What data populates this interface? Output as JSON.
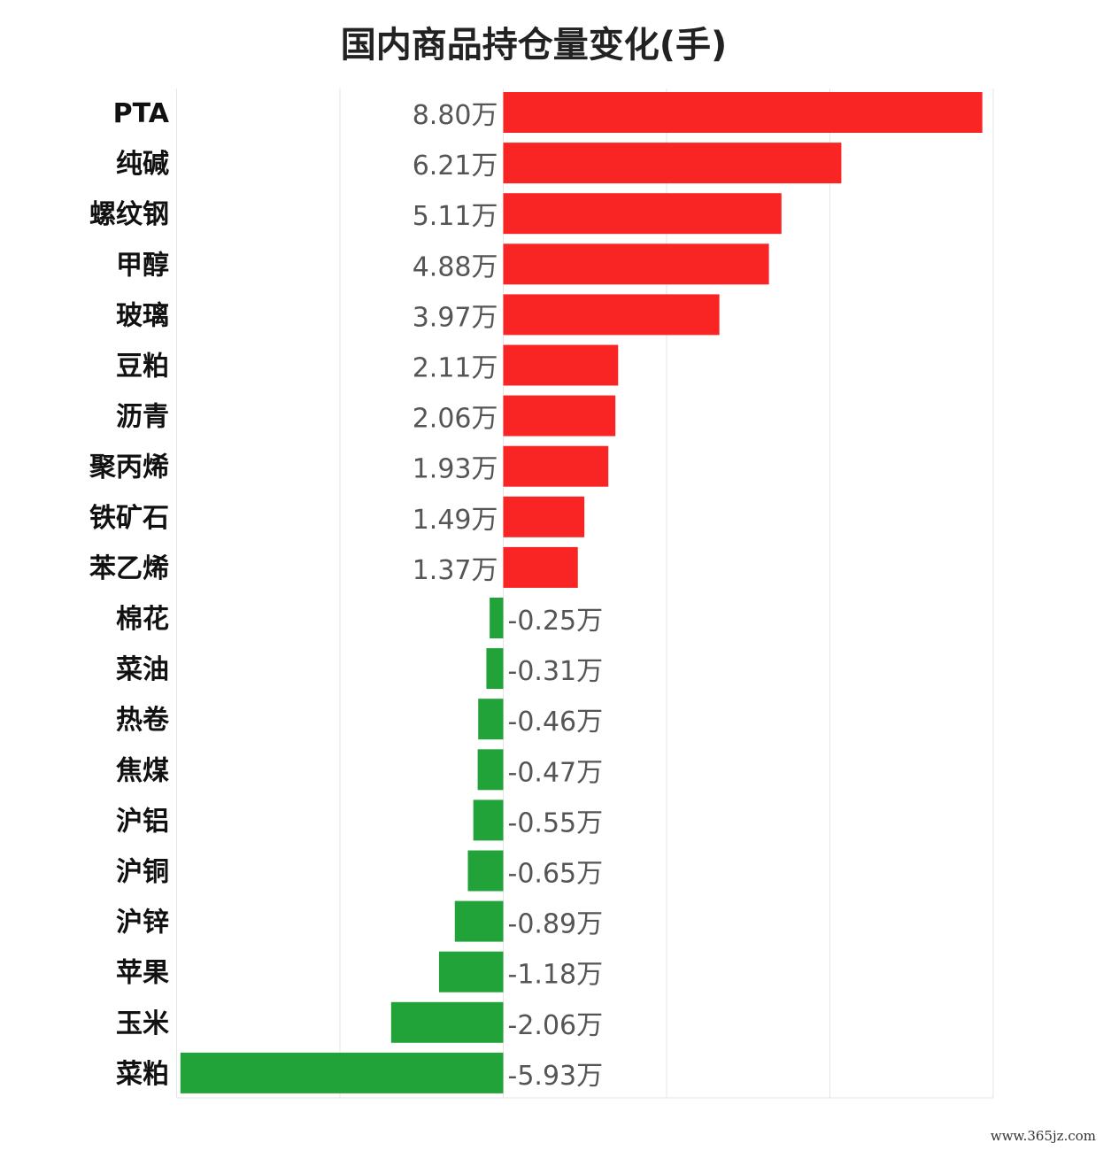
{
  "title": "国内商品持仓量变化(手)",
  "watermark": "www.365jz.com",
  "colors": {
    "positive": "#f92525",
    "negative": "#22a33a",
    "grid": "#e6e6e6"
  },
  "chart_data": {
    "type": "bar",
    "orientation": "horizontal",
    "title": "国内商品持仓量变化(手)",
    "unit": "万",
    "xlim": [
      -6,
      9
    ],
    "grid": true,
    "legend": "none",
    "categories": [
      "PTA",
      "纯碱",
      "螺纹钢",
      "甲醇",
      "玻璃",
      "豆粕",
      "沥青",
      "聚丙烯",
      "铁矿石",
      "苯乙烯",
      "棉花",
      "菜油",
      "热卷",
      "焦煤",
      "沪铝",
      "沪铜",
      "沪锌",
      "苹果",
      "玉米",
      "菜粕"
    ],
    "values": [
      8.8,
      6.21,
      5.11,
      4.88,
      3.97,
      2.11,
      2.06,
      1.93,
      1.49,
      1.37,
      -0.25,
      -0.31,
      -0.46,
      -0.47,
      -0.55,
      -0.65,
      -0.89,
      -1.18,
      -2.06,
      -5.93
    ],
    "value_labels": [
      "8.80万",
      "6.21万",
      "5.11万",
      "4.88万",
      "3.97万",
      "2.11万",
      "2.06万",
      "1.93万",
      "1.49万",
      "1.37万",
      "-0.25万",
      "-0.31万",
      "-0.46万",
      "-0.47万",
      "-0.55万",
      "-0.65万",
      "-0.89万",
      "-1.18万",
      "-2.06万",
      "-5.93万"
    ]
  }
}
